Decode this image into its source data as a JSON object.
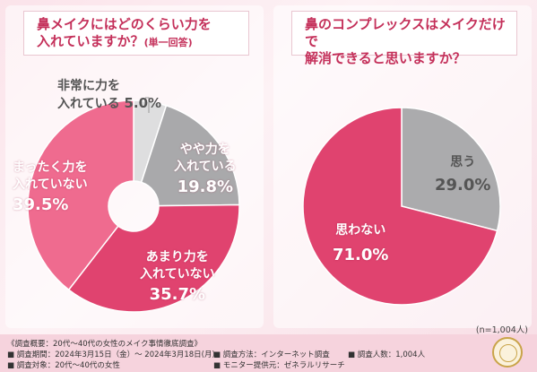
{
  "chart_data": [
    {
      "type": "pie",
      "title": "鼻メイクにはどのくらい力を入れていますか？",
      "subtitle": "(単一回答)",
      "colors": [
        "#dededf",
        "#a9a9ab",
        "#e0436f",
        "#ef6b8f"
      ],
      "slices": [
        {
          "label_lines": [
            "非常に力を",
            "入れている"
          ],
          "value": 5.0,
          "value_text": "5.0%"
        },
        {
          "label_lines": [
            "やや力を",
            "入れている"
          ],
          "value": 19.8,
          "value_text": "19.8%"
        },
        {
          "label_lines": [
            "あまり力を",
            "入れていない"
          ],
          "value": 35.7,
          "value_text": "35.7%"
        },
        {
          "label_lines": [
            "まったく力を",
            "入れていない"
          ],
          "value": 39.5,
          "value_text": "39.5%"
        }
      ]
    },
    {
      "type": "pie",
      "title": "鼻のコンプレックスはメイクだけで解消できると思いますか？",
      "colors": [
        "#ababad",
        "#e0436f"
      ],
      "slices": [
        {
          "label_lines": [
            "思う"
          ],
          "value": 29.0,
          "value_text": "29.0%"
        },
        {
          "label_lines": [
            "思わない"
          ],
          "value": 71.0,
          "value_text": "71.0%"
        }
      ]
    }
  ],
  "left_q": {
    "line1": "鼻メイクにはどのくらい力を",
    "line2": "入れていますか？",
    "suffix": "(単一回答)"
  },
  "right_q": {
    "line1": "鼻のコンプレックスはメイクだけで",
    "line2": "解消できると思いますか？"
  },
  "n_count": "(n=1,004人)",
  "footer": {
    "summary": "《調査概要：20代～40代の女性のメイク事情徹底調査》",
    "period": "■ 調査期間：2024年3月15日（金）～ 2024年3月18日(月)",
    "target": "■ 調査対象：20代～40代の女性",
    "method": "■ 調査方法：インターネット調査",
    "provider": "■ モニター提供元：ゼネラルリサーチ",
    "count": "■ 調査人数：1,004人"
  }
}
